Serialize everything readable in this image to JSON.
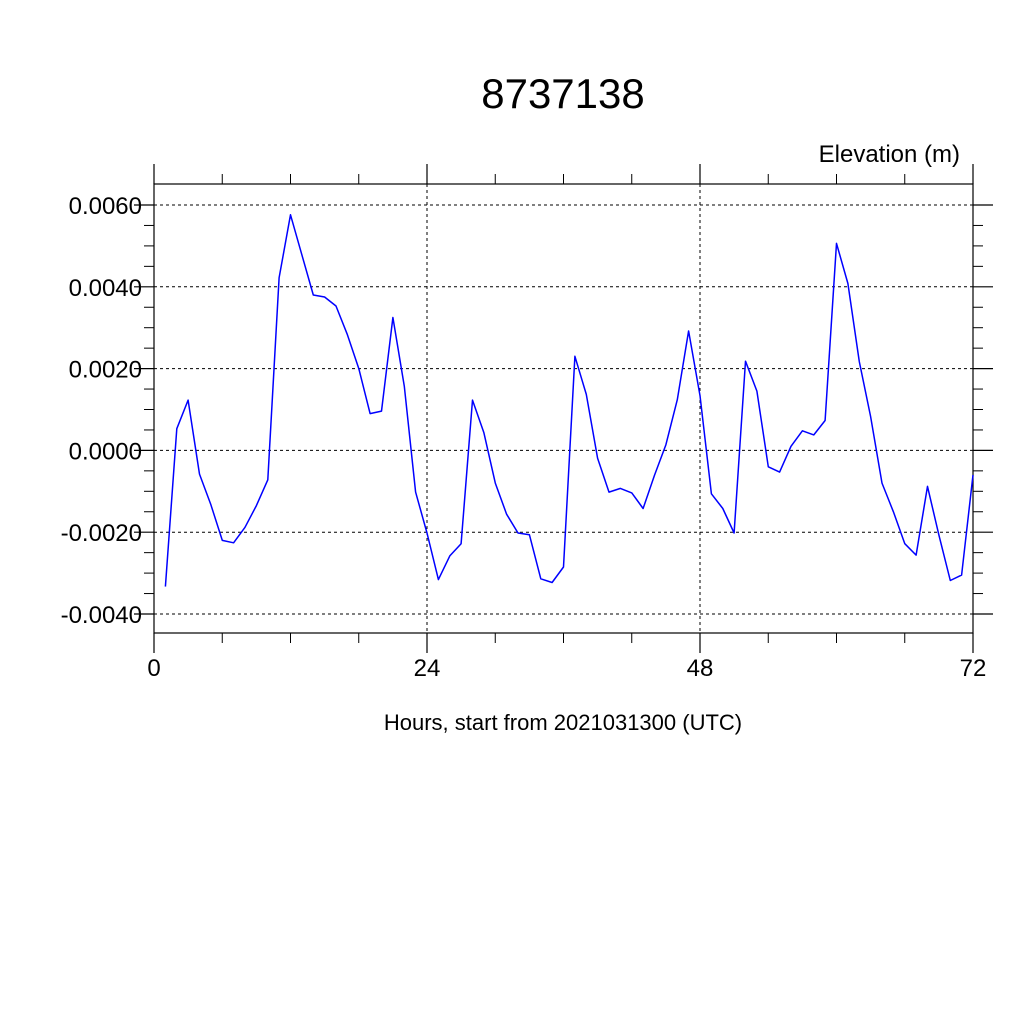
{
  "chart_data": {
    "type": "line",
    "title": "8737138",
    "ylabel": "Elevation (m)",
    "xlabel": "Hours, start from 2021031300 (UTC)",
    "xlim": [
      0,
      72
    ],
    "ylim": [
      -0.004,
      0.006
    ],
    "x_ticks": [
      0,
      24,
      48,
      72
    ],
    "x_tick_labels": [
      "0",
      "24",
      "48",
      "72"
    ],
    "y_ticks": [
      -0.004,
      -0.002,
      0.0,
      0.002,
      0.004,
      0.006
    ],
    "y_tick_labels": [
      "-0.0040",
      "-0.0020",
      "0.0000",
      "0.0020",
      "0.0040",
      "0.0060"
    ],
    "grid": true,
    "series": [
      {
        "color": "#0000ff",
        "x": [
          1,
          2,
          3,
          4,
          5,
          6,
          7,
          8,
          9,
          10,
          11,
          12,
          13,
          14,
          15,
          16,
          17,
          18,
          19,
          20,
          21,
          22,
          23,
          24,
          25,
          26,
          27,
          28,
          29,
          30,
          31,
          32,
          33,
          34,
          35,
          36,
          37,
          38,
          39,
          40,
          41,
          42,
          43,
          44,
          45,
          46,
          47,
          48,
          49,
          50,
          51,
          52,
          53,
          54,
          55,
          56,
          57,
          58,
          59,
          60,
          61,
          62,
          63,
          64,
          65,
          66,
          67,
          68,
          69,
          70,
          71,
          72
        ],
        "y": [
          -0.00333,
          0.00053,
          0.00123,
          -0.00058,
          -0.00133,
          -0.0022,
          -0.00226,
          -0.00188,
          -0.00135,
          -0.00072,
          0.00422,
          0.00576,
          0.00478,
          0.0038,
          0.00375,
          0.00353,
          0.00283,
          0.002,
          0.0009,
          0.00096,
          0.00325,
          0.00157,
          -0.00102,
          -0.00202,
          -0.00316,
          -0.00258,
          -0.00228,
          0.00123,
          0.00043,
          -0.0008,
          -0.00156,
          -0.00202,
          -0.00206,
          -0.00314,
          -0.00323,
          -0.00285,
          0.0023,
          0.00137,
          -0.00019,
          -0.00102,
          -0.00093,
          -0.00104,
          -0.00142,
          -0.00061,
          0.00014,
          0.00124,
          0.00292,
          0.00134,
          -0.00106,
          -0.00142,
          -0.00202,
          0.00218,
          0.00145,
          -0.0004,
          -0.00053,
          0.0001,
          0.00048,
          0.00038,
          0.00073,
          0.00506,
          0.00408,
          0.00217,
          0.00083,
          -0.0008,
          -0.0015,
          -0.00228,
          -0.00256,
          -0.00088,
          -0.00207,
          -0.00318,
          -0.00305,
          -0.0006
        ]
      }
    ]
  }
}
